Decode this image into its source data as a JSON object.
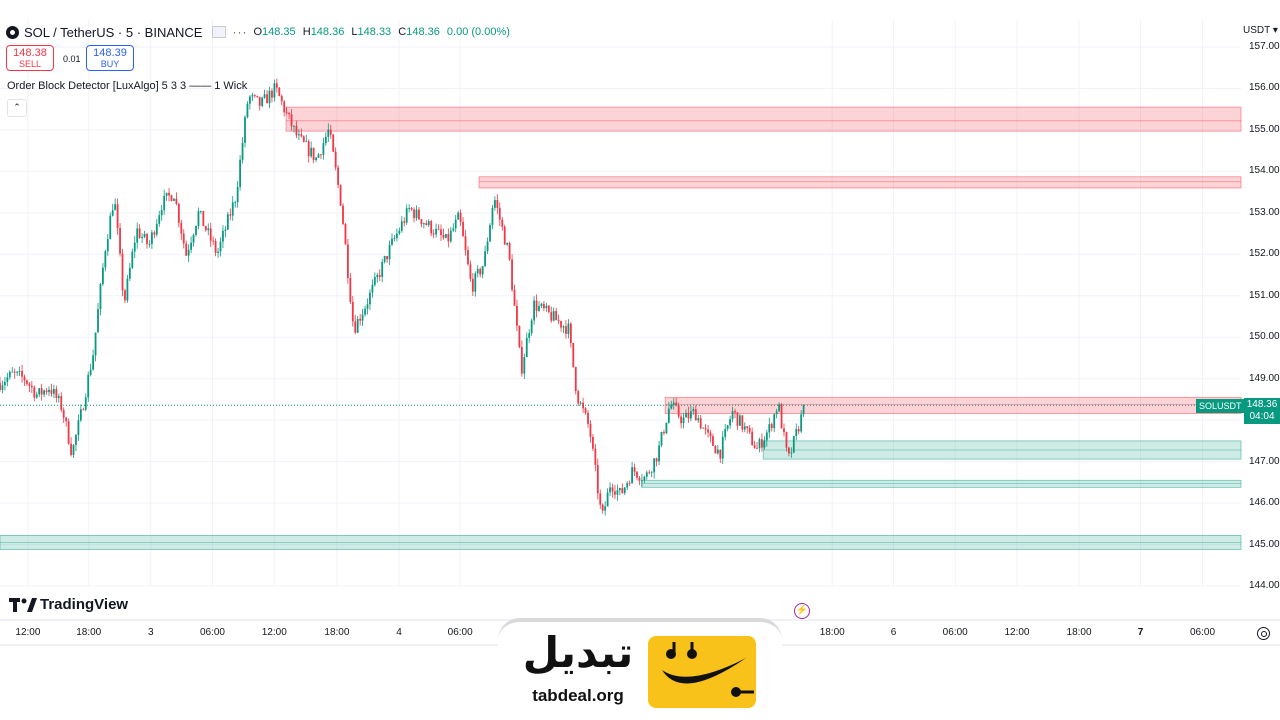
{
  "header": {
    "symbol_title": "SOL / TetherUS · 5 · BINANCE",
    "ohlc": {
      "o_label": "O",
      "o_value": "148.35",
      "h_label": "H",
      "h_value": "148.36",
      "l_label": "L",
      "l_value": "148.33",
      "c_label": "C",
      "c_value": "148.36",
      "change": "0.00 (0.00%)"
    },
    "more_label": "···"
  },
  "trade": {
    "sell_price": "148.38",
    "sell_label": "SELL",
    "spread": "0.01",
    "buy_price": "148.39",
    "buy_label": "BUY"
  },
  "indicator_label": "Order Block Detector [LuxAlgo] 5 3 3 —— 1 Wick",
  "collapse_label": "⌃",
  "currency": "USDT ▾",
  "current_price": {
    "symbol": "SOLUSDT",
    "price": "148.36",
    "countdown": "04:04"
  },
  "brand": {
    "name": "TradingView"
  },
  "watermark": {
    "arabic": "تبدیل",
    "domain": "tabdeal.org"
  },
  "colors": {
    "up": "#089981",
    "down": "#f23645",
    "bear_zone": "#f23645",
    "bull_zone": "#089981",
    "accent": "#f8c21a"
  },
  "chart_data": {
    "type": "candlestick",
    "symbol": "SOL / TetherUS",
    "interval": "5",
    "ylim": [
      143.7,
      157.3
    ],
    "y_ticks": [
      "157.00",
      "156.00",
      "155.00",
      "154.00",
      "153.00",
      "152.00",
      "151.00",
      "150.00",
      "149.00",
      "148.00",
      "147.00",
      "146.00",
      "145.00",
      "144.00"
    ],
    "x_ticks": [
      {
        "label": "12:00",
        "pos": 0.0225,
        "bold": false
      },
      {
        "label": "18:00",
        "pos": 0.0715,
        "bold": false
      },
      {
        "label": "3",
        "pos": 0.1215,
        "bold": false
      },
      {
        "label": "06:00",
        "pos": 0.1712,
        "bold": false
      },
      {
        "label": "12:00",
        "pos": 0.221,
        "bold": false
      },
      {
        "label": "18:00",
        "pos": 0.2715,
        "bold": false
      },
      {
        "label": "4",
        "pos": 0.3215,
        "bold": false
      },
      {
        "label": "06:00",
        "pos": 0.3708,
        "bold": false
      },
      {
        "label": "18:00",
        "pos": 0.6706,
        "bold": false
      },
      {
        "label": "6",
        "pos": 0.72,
        "bold": false
      },
      {
        "label": "06:00",
        "pos": 0.7697,
        "bold": false
      },
      {
        "label": "12:00",
        "pos": 0.8195,
        "bold": false
      },
      {
        "label": "18:00",
        "pos": 0.8695,
        "bold": false
      },
      {
        "label": "7",
        "pos": 0.919,
        "bold": true
      },
      {
        "label": "06:00",
        "pos": 0.969,
        "bold": false
      }
    ],
    "price_path": [
      [
        0.0,
        148.9
      ],
      [
        0.01,
        149.1
      ],
      [
        0.02,
        149.0
      ],
      [
        0.03,
        148.6
      ],
      [
        0.04,
        148.8
      ],
      [
        0.05,
        148.3
      ],
      [
        0.058,
        147.2
      ],
      [
        0.065,
        148.1
      ],
      [
        0.075,
        149.6
      ],
      [
        0.085,
        152.2
      ],
      [
        0.092,
        153.4
      ],
      [
        0.1,
        150.8
      ],
      [
        0.11,
        152.6
      ],
      [
        0.12,
        152.2
      ],
      [
        0.13,
        153.2
      ],
      [
        0.14,
        153.5
      ],
      [
        0.15,
        152.0
      ],
      [
        0.16,
        153.0
      ],
      [
        0.175,
        152.0
      ],
      [
        0.19,
        153.4
      ],
      [
        0.2,
        155.8
      ],
      [
        0.21,
        155.6
      ],
      [
        0.222,
        156.0
      ],
      [
        0.232,
        155.3
      ],
      [
        0.24,
        154.8
      ],
      [
        0.255,
        154.3
      ],
      [
        0.265,
        155.0
      ],
      [
        0.275,
        153.2
      ],
      [
        0.285,
        150.2
      ],
      [
        0.295,
        150.8
      ],
      [
        0.305,
        151.5
      ],
      [
        0.315,
        152.2
      ],
      [
        0.33,
        153.1
      ],
      [
        0.345,
        152.7
      ],
      [
        0.36,
        152.3
      ],
      [
        0.37,
        152.9
      ],
      [
        0.38,
        151.2
      ],
      [
        0.39,
        151.8
      ],
      [
        0.398,
        153.4
      ],
      [
        0.41,
        152.0
      ],
      [
        0.42,
        149.2
      ],
      [
        0.43,
        150.8
      ],
      [
        0.44,
        150.6
      ],
      [
        0.458,
        150.2
      ],
      [
        0.465,
        148.6
      ],
      [
        0.475,
        147.8
      ],
      [
        0.485,
        145.6
      ],
      [
        0.492,
        146.5
      ],
      [
        0.5,
        146.2
      ],
      [
        0.51,
        146.8
      ],
      [
        0.52,
        146.6
      ],
      [
        0.53,
        147.2
      ],
      [
        0.54,
        148.4
      ],
      [
        0.55,
        148.0
      ],
      [
        0.56,
        148.2
      ],
      [
        0.57,
        147.6
      ],
      [
        0.58,
        147.2
      ],
      [
        0.59,
        148.2
      ],
      [
        0.6,
        147.8
      ],
      [
        0.61,
        147.3
      ],
      [
        0.62,
        147.8
      ],
      [
        0.627,
        148.4
      ],
      [
        0.635,
        147.0
      ],
      [
        0.64,
        147.5
      ],
      [
        0.648,
        148.3
      ]
    ],
    "zones": [
      {
        "kind": "bearish",
        "top": 155.55,
        "bottom": 154.97,
        "mid": 155.22,
        "x_start": 0.2305,
        "x_end": 1.0
      },
      {
        "kind": "bearish",
        "top": 153.87,
        "bottom": 153.6,
        "mid": 153.75,
        "x_start": 0.386,
        "x_end": 1.0
      },
      {
        "kind": "bearish",
        "top": 148.55,
        "bottom": 148.16,
        "mid": 148.38,
        "x_start": 0.536,
        "x_end": 1.0
      },
      {
        "kind": "bullish",
        "top": 147.5,
        "bottom": 147.06,
        "mid": 147.28,
        "x_start": 0.615,
        "x_end": 1.0
      },
      {
        "kind": "bullish",
        "top": 146.55,
        "bottom": 146.38,
        "mid": 146.47,
        "x_start": 0.517,
        "x_end": 1.0
      },
      {
        "kind": "bullish",
        "top": 145.22,
        "bottom": 144.88,
        "mid": 145.05,
        "x_start": 0.0,
        "x_end": 1.0
      }
    ],
    "last_price": 148.36
  }
}
